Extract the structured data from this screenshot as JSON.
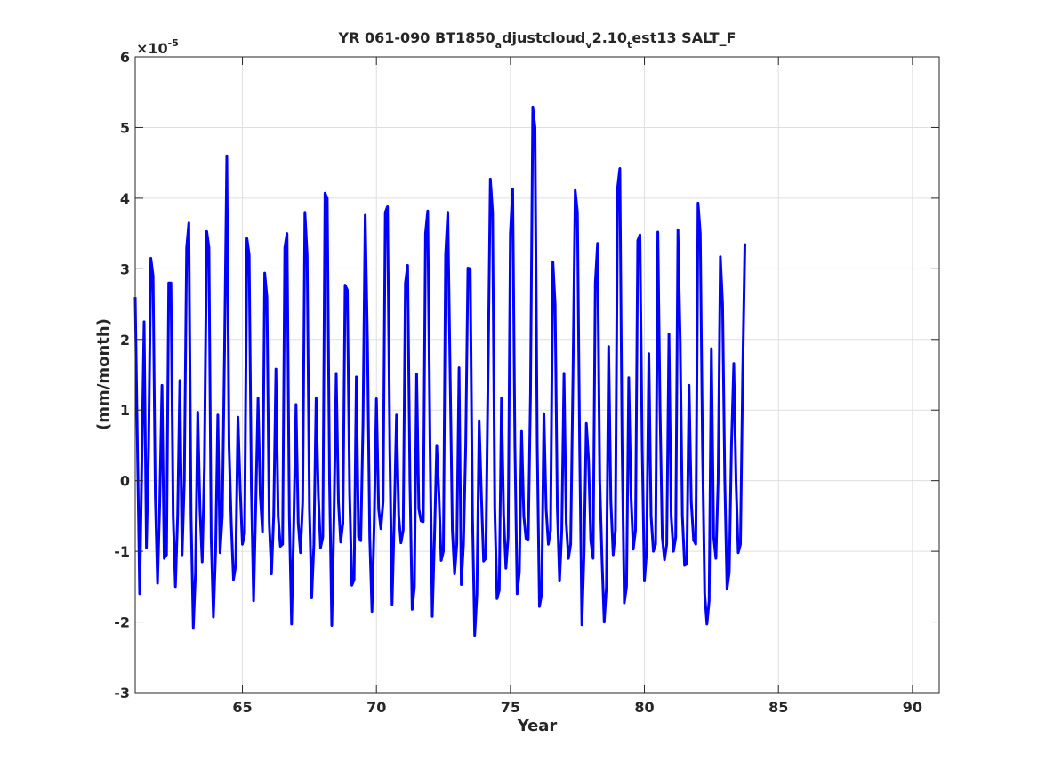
{
  "chart_data": {
    "type": "line",
    "title": "YR 061-090 BT1850_adjustcloud_v2.10_test13 SALT_F",
    "title_parts": [
      {
        "text": "YR 061-090 BT1850",
        "sub": false
      },
      {
        "text": "a",
        "sub": true
      },
      {
        "text": "djustcloud",
        "sub": false
      },
      {
        "text": "v",
        "sub": true
      },
      {
        "text": "2.10",
        "sub": false
      },
      {
        "text": "t",
        "sub": true
      },
      {
        "text": "est13 SALT_F",
        "sub": false
      }
    ],
    "xlabel": "Year",
    "ylabel": "(mm/month)",
    "exponent_label": "×10",
    "exponent_power": "-5",
    "xlim": [
      61,
      91
    ],
    "ylim": [
      -3,
      6
    ],
    "xticks": [
      65,
      70,
      75,
      80,
      85,
      90
    ],
    "yticks": [
      -3,
      -2,
      -1,
      0,
      1,
      2,
      3,
      4,
      5,
      6
    ],
    "xtick_labels": [
      "65",
      "70",
      "75",
      "80",
      "85",
      "90"
    ],
    "ytick_labels": [
      "-3",
      "-2",
      "-1",
      "0",
      "1",
      "2",
      "3",
      "4",
      "5",
      "6"
    ],
    "grid": true,
    "line_color": "#0000ff",
    "series": [
      {
        "x_start": 61.0,
        "x_step": 0.08333,
        "values": [
          2.6,
          0.5,
          -1.6,
          0.3,
          2.25,
          -0.95,
          0.5,
          3.15,
          2.9,
          -0.2,
          -1.45,
          -0.3,
          1.35,
          -1.1,
          -1.05,
          2.8,
          2.8,
          -0.5,
          -1.5,
          -0.5,
          1.42,
          -1.05,
          0.0,
          3.3,
          3.65,
          -0.5,
          -2.08,
          -1.3,
          0.97,
          -0.4,
          -1.15,
          0.2,
          3.53,
          3.3,
          -0.8,
          -1.93,
          -1.0,
          0.93,
          -1.02,
          -0.5,
          1.8,
          4.6,
          0.5,
          -0.6,
          -1.4,
          -1.2,
          0.9,
          -0.1,
          -0.9,
          -0.75,
          3.43,
          3.2,
          -0.1,
          -1.7,
          -0.3,
          1.17,
          -0.2,
          -0.72,
          2.94,
          2.6,
          -0.6,
          -1.32,
          -0.5,
          1.58,
          -0.5,
          -0.93,
          -0.9,
          3.3,
          3.5,
          -0.5,
          -2.03,
          -0.6,
          1.08,
          -0.6,
          -1.02,
          -0.3,
          3.8,
          3.2,
          -0.4,
          -1.66,
          -0.9,
          1.17,
          -0.2,
          -0.95,
          -0.8,
          4.07,
          4.0,
          0.0,
          -2.05,
          -0.5,
          1.52,
          -0.3,
          -0.87,
          -0.6,
          2.77,
          2.7,
          -0.2,
          -1.48,
          -1.4,
          1.47,
          -0.8,
          -0.85,
          0.8,
          3.76,
          2.0,
          -0.8,
          -1.85,
          -0.6,
          1.16,
          -0.4,
          -0.68,
          -0.3,
          3.8,
          3.88,
          0.4,
          -1.75,
          -0.5,
          0.93,
          -0.5,
          -0.88,
          -0.7,
          2.8,
          3.05,
          0.0,
          -1.82,
          -1.5,
          1.51,
          -0.4,
          -0.57,
          -0.58,
          3.5,
          3.82,
          0.5,
          -1.92,
          -0.8,
          0.5,
          -0.2,
          -1.13,
          -1.0,
          3.2,
          3.8,
          1.5,
          -0.7,
          -1.32,
          -0.9,
          1.6,
          -1.47,
          -0.9,
          0.5,
          3.01,
          3.0,
          -0.5,
          -2.19,
          -1.6,
          0.85,
          -0.2,
          -1.14,
          -1.1,
          1.5,
          4.27,
          3.8,
          -0.4,
          -1.67,
          -1.55,
          1.17,
          -0.5,
          -1.24,
          -0.8,
          3.5,
          4.13,
          0.5,
          -1.6,
          -1.3,
          0.7,
          -0.5,
          -0.82,
          -0.83,
          1.2,
          5.29,
          5.0,
          0.5,
          -1.78,
          -1.6,
          0.95,
          -0.4,
          -0.9,
          -0.7,
          3.1,
          2.5,
          -0.4,
          -1.42,
          -0.7,
          1.52,
          -0.6,
          -1.1,
          -0.9,
          1.5,
          4.11,
          3.8,
          0.5,
          -2.04,
          -1.0,
          0.81,
          0.3,
          -0.85,
          -1.1,
          2.8,
          3.36,
          0.0,
          -1.1,
          -2.0,
          -1.5,
          1.9,
          -0.3,
          -1.05,
          -0.7,
          4.15,
          4.42,
          0.5,
          -1.73,
          -1.5,
          1.46,
          -0.2,
          -0.97,
          -0.7,
          3.4,
          3.48,
          0.5,
          -1.42,
          -1.0,
          1.8,
          -0.5,
          -1.0,
          -0.9,
          3.52,
          1.0,
          -0.8,
          -1.12,
          -0.9,
          2.08,
          -0.5,
          -1.0,
          -0.8,
          3.55,
          2.0,
          -0.5,
          -1.2,
          -1.18,
          1.35,
          -0.3,
          -0.84,
          -0.9,
          3.93,
          3.5,
          0.5,
          -1.6,
          -2.03,
          -1.7,
          1.87,
          -0.8,
          -1.1,
          0.0,
          3.17,
          2.5,
          0.0,
          -1.53,
          -1.3,
          0.5,
          1.66,
          0.0,
          -1.02,
          -0.9,
          1.5,
          3.36
        ]
      }
    ]
  }
}
